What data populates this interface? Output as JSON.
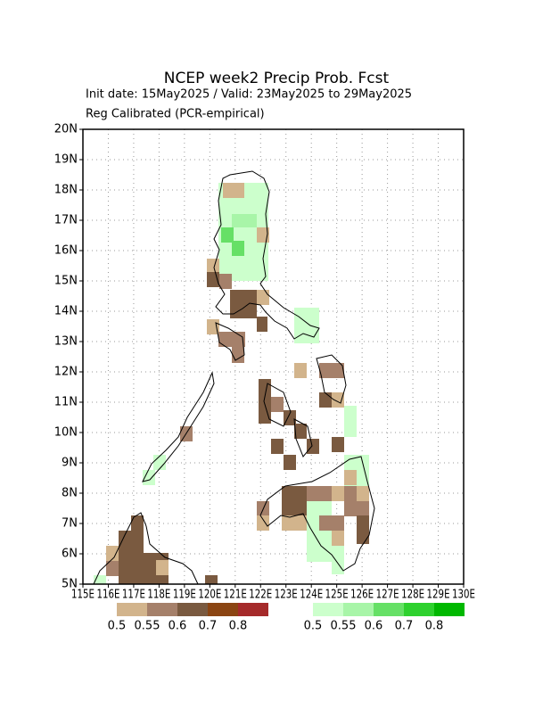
{
  "chart_data": {
    "type": "map",
    "title": "NCEP week2 Precip Prob. Fcst",
    "subtitle": "Init date: 15May2025 / Valid: 23May2025 to 29May2025",
    "subtitle2": "Reg Calibrated (PCR-empirical)",
    "xlim": [
      115,
      130
    ],
    "ylim": [
      5,
      20
    ],
    "xticks": [
      {
        "value": 115,
        "label": "115E"
      },
      {
        "value": 116,
        "label": "116E"
      },
      {
        "value": 117,
        "label": "117E"
      },
      {
        "value": 118,
        "label": "118E"
      },
      {
        "value": 119,
        "label": "119E"
      },
      {
        "value": 120,
        "label": "120E"
      },
      {
        "value": 121,
        "label": "121E"
      },
      {
        "value": 122,
        "label": "122E"
      },
      {
        "value": 123,
        "label": "123E"
      },
      {
        "value": 124,
        "label": "124E"
      },
      {
        "value": 125,
        "label": "125E"
      },
      {
        "value": 126,
        "label": "126E"
      },
      {
        "value": 127,
        "label": "127E"
      },
      {
        "value": 128,
        "label": "128E"
      },
      {
        "value": 129,
        "label": "129E"
      },
      {
        "value": 130,
        "label": "130E"
      }
    ],
    "yticks": [
      {
        "value": 5,
        "label": "5N"
      },
      {
        "value": 6,
        "label": "6N"
      },
      {
        "value": 7,
        "label": "7N"
      },
      {
        "value": 8,
        "label": "8N"
      },
      {
        "value": 9,
        "label": "9N"
      },
      {
        "value": 10,
        "label": "10N"
      },
      {
        "value": 11,
        "label": "11N"
      },
      {
        "value": 12,
        "label": "12N"
      },
      {
        "value": 13,
        "label": "13N"
      },
      {
        "value": 14,
        "label": "14N"
      },
      {
        "value": 15,
        "label": "15N"
      },
      {
        "value": 16,
        "label": "16N"
      },
      {
        "value": 17,
        "label": "17N"
      },
      {
        "value": 18,
        "label": "18N"
      },
      {
        "value": 19,
        "label": "19N"
      },
      {
        "value": 20,
        "label": "20N"
      }
    ],
    "grid": true,
    "colorbars": [
      {
        "colors": [
          "#d2b48c",
          "#a5806a",
          "#7a5a40",
          "#8b4513",
          "#a52a2a"
        ],
        "labels": [
          0.5,
          0.55,
          0.6,
          0.7,
          0.8
        ]
      },
      {
        "colors": [
          "#ccffcc",
          "#a8f5a8",
          "#66e066",
          "#2ed12e",
          "#00b800"
        ],
        "labels": [
          0.5,
          0.55,
          0.6,
          0.7,
          0.8
        ]
      }
    ]
  }
}
